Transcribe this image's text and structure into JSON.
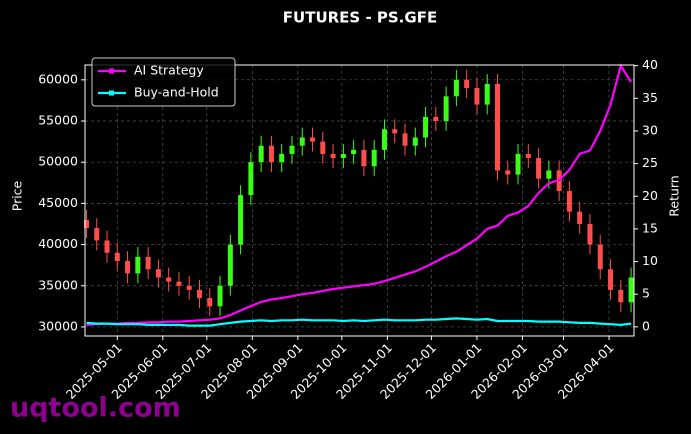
{
  "chart_data": {
    "type": "candlestick",
    "title": "FUTURES - PS.GFE",
    "watermark": "uqtool.com",
    "y_label": "Price",
    "y2_label": "Return",
    "x": [
      "2025-04-10",
      "2025-04-17",
      "2025-04-24",
      "2025-05-01",
      "2025-05-08",
      "2025-05-15",
      "2025-05-22",
      "2025-05-29",
      "2025-06-05",
      "2025-06-12",
      "2025-06-19",
      "2025-06-26",
      "2025-07-03",
      "2025-07-10",
      "2025-07-17",
      "2025-07-24",
      "2025-07-31",
      "2025-08-07",
      "2025-08-14",
      "2025-08-21",
      "2025-08-28",
      "2025-09-04",
      "2025-09-11",
      "2025-09-18",
      "2025-09-25",
      "2025-10-02",
      "2025-10-09",
      "2025-10-16",
      "2025-10-23",
      "2025-10-30",
      "2025-11-06",
      "2025-11-13",
      "2025-11-20",
      "2025-11-27",
      "2025-12-04",
      "2025-12-11",
      "2025-12-18",
      "2025-12-25",
      "2026-01-01",
      "2026-01-08",
      "2026-01-15",
      "2026-01-22",
      "2026-01-29",
      "2026-02-05",
      "2026-02-12",
      "2026-02-19",
      "2026-02-26",
      "2026-03-05",
      "2026-03-12",
      "2026-03-19",
      "2026-03-26",
      "2026-04-02",
      "2026-04-09",
      "2026-04-16"
    ],
    "open": [
      43000,
      42000,
      40500,
      39000,
      38000,
      36500,
      38500,
      37000,
      36000,
      35500,
      35000,
      34500,
      33500,
      32500,
      35000,
      40000,
      46000,
      50000,
      52000,
      50000,
      51000,
      52000,
      53000,
      52500,
      51000,
      50500,
      51000,
      51500,
      49500,
      51500,
      54000,
      53500,
      52000,
      53000,
      55500,
      55000,
      58000,
      60000,
      59000,
      57000,
      59500,
      49000,
      48500,
      51000,
      50500,
      48000,
      49000,
      46500,
      44000,
      42500,
      40000,
      37000,
      34500,
      33000
    ],
    "high": [
      44200,
      43200,
      41700,
      40200,
      39200,
      39700,
      39700,
      38200,
      37200,
      36700,
      36200,
      35700,
      34700,
      36200,
      41200,
      47200,
      51200,
      53200,
      53200,
      52200,
      53200,
      54200,
      54200,
      53700,
      52200,
      52200,
      52700,
      52700,
      52700,
      55200,
      55200,
      54700,
      54200,
      56700,
      56700,
      59200,
      61200,
      61200,
      60200,
      60700,
      60700,
      50200,
      52200,
      52200,
      51700,
      50200,
      50200,
      47700,
      45200,
      43700,
      41200,
      38200,
      35700,
      37200
    ],
    "low": [
      40800,
      39300,
      37800,
      36800,
      35300,
      35300,
      35800,
      34800,
      34300,
      33800,
      33300,
      32300,
      31300,
      31300,
      33800,
      38800,
      44800,
      48800,
      48800,
      48800,
      49800,
      50800,
      51300,
      49800,
      49300,
      49300,
      49800,
      48300,
      48300,
      50300,
      52300,
      50800,
      50800,
      51800,
      53800,
      53800,
      56800,
      57800,
      55800,
      55800,
      47800,
      47300,
      47300,
      49300,
      46800,
      46800,
      45300,
      42800,
      41300,
      38800,
      35800,
      33300,
      31800,
      31800
    ],
    "close": [
      42000,
      40500,
      39000,
      38000,
      36500,
      38500,
      37000,
      36000,
      35500,
      35000,
      34500,
      33500,
      32500,
      35000,
      40000,
      46000,
      50000,
      52000,
      50000,
      51000,
      52000,
      53000,
      52500,
      51000,
      50500,
      51000,
      51500,
      49500,
      51500,
      54000,
      53500,
      52000,
      53000,
      55500,
      55000,
      58000,
      60000,
      59000,
      57000,
      59500,
      49000,
      48500,
      51000,
      50500,
      48000,
      49000,
      46500,
      44000,
      42500,
      40000,
      37000,
      34500,
      33000,
      36000
    ],
    "up_color": "#39ff14",
    "down_color": "#ff4d4d",
    "series": [
      {
        "name": "AI Strategy",
        "color": "#ff00ff",
        "axis": "y2",
        "values": [
          0.3,
          0.4,
          0.5,
          0.5,
          0.6,
          0.6,
          0.7,
          0.7,
          0.8,
          0.8,
          0.9,
          1.0,
          1.1,
          1.3,
          1.8,
          2.5,
          3.2,
          3.8,
          4.2,
          4.4,
          4.7,
          5.0,
          5.2,
          5.5,
          5.8,
          6.0,
          6.2,
          6.4,
          6.6,
          7.0,
          7.5,
          8.0,
          8.5,
          9.2,
          10.0,
          10.8,
          11.5,
          12.5,
          13.5,
          15.0,
          15.5,
          17.0,
          17.5,
          18.5,
          20.5,
          22.0,
          22.5,
          24.0,
          26.5,
          27.0,
          30.0,
          34.0,
          40.0,
          37.5
        ]
      },
      {
        "name": "Buy-and-Hold",
        "color": "#00ffff",
        "axis": "y2",
        "values": [
          0.6,
          0.5,
          0.5,
          0.4,
          0.4,
          0.4,
          0.3,
          0.3,
          0.3,
          0.3,
          0.2,
          0.2,
          0.2,
          0.4,
          0.6,
          0.8,
          0.9,
          1.0,
          0.9,
          1.0,
          1.0,
          1.1,
          1.0,
          1.0,
          1.0,
          0.9,
          1.0,
          0.9,
          1.0,
          1.1,
          1.0,
          1.0,
          1.0,
          1.1,
          1.1,
          1.2,
          1.3,
          1.2,
          1.1,
          1.2,
          0.9,
          0.9,
          0.9,
          0.9,
          0.8,
          0.8,
          0.8,
          0.7,
          0.6,
          0.6,
          0.5,
          0.4,
          0.3,
          0.5
        ]
      }
    ],
    "xlim": [
      "2025-04-09",
      "2026-04-18"
    ],
    "xticks": [
      "2025-05-01",
      "2025-06-01",
      "2025-07-01",
      "2025-08-01",
      "2025-09-01",
      "2025-10-01",
      "2025-11-01",
      "2025-12-01",
      "2026-01-01",
      "2026-02-01",
      "2026-03-01",
      "2026-04-01"
    ],
    "ylim": [
      28900,
      61800
    ],
    "yticks": [
      30000,
      35000,
      40000,
      45000,
      50000,
      55000,
      60000
    ],
    "y2lim": [
      -1.4,
      40.1
    ],
    "y2ticks": [
      0,
      5,
      10,
      15,
      20,
      25,
      30,
      35,
      40
    ],
    "grid": true,
    "legend": "upper left"
  }
}
